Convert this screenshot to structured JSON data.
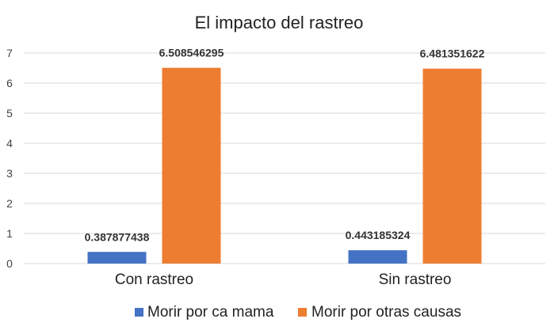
{
  "chart_data": {
    "type": "bar",
    "title": "El impacto del rastreo",
    "categories": [
      "Con rastreo",
      "Sin rastreo"
    ],
    "series": [
      {
        "name": "Morir por ca mama",
        "color": "#4472C4",
        "values": [
          0.387877438,
          0.443185324
        ],
        "labels": [
          "0.387877438",
          "0.443185324"
        ]
      },
      {
        "name": "Morir por otras causas",
        "color": "#ED7D31",
        "values": [
          6.508546295,
          6.481351622
        ],
        "labels": [
          "6.508546295",
          "6.481351622"
        ]
      }
    ],
    "ylim": [
      0,
      7
    ],
    "yticks": [
      "0",
      "1",
      "2",
      "3",
      "4",
      "5",
      "6",
      "7"
    ],
    "grid": true,
    "legend_position": "bottom"
  }
}
